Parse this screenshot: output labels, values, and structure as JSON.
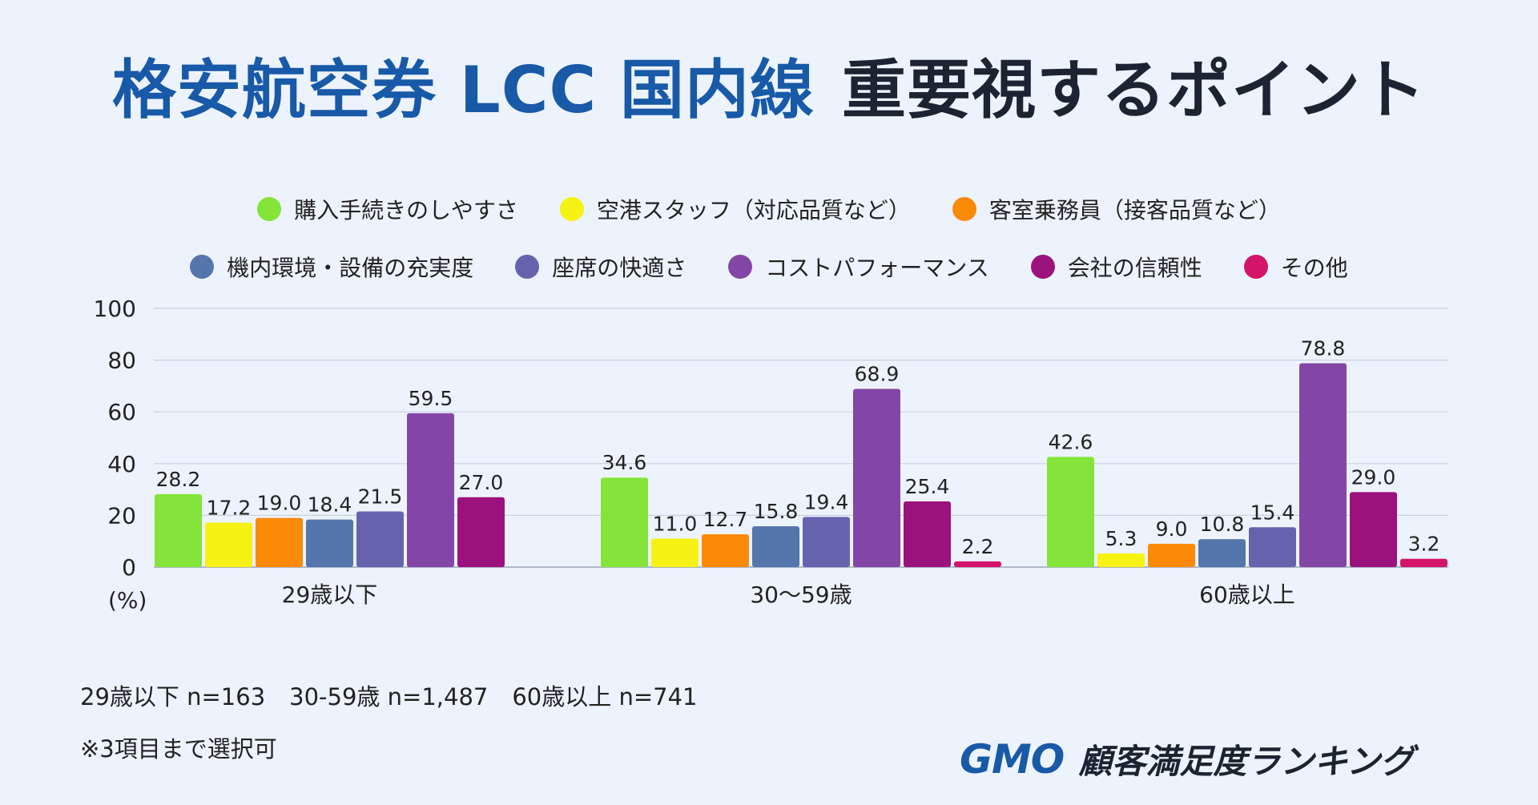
{
  "title": {
    "part1": "格安航空券 LCC 国内線",
    "part2": "重要視するポイント"
  },
  "colors": {
    "title_blue": "#1859a8",
    "title_dark": "#1c2433",
    "background": "#edf3fc"
  },
  "legend": [
    {
      "label": "購入手続きのしやすさ",
      "color": "#84e43a"
    },
    {
      "label": "空港スタッフ（対応品質など）",
      "color": "#f6f213"
    },
    {
      "label": "客室乗務員（接客品質など）",
      "color": "#fb8a09"
    },
    {
      "label": "機内環境・設備の充実度",
      "color": "#5576ad"
    },
    {
      "label": "座席の快適さ",
      "color": "#6663ae"
    },
    {
      "label": "コストパフォーマンス",
      "color": "#8446a6"
    },
    {
      "label": "会社の信頼性",
      "color": "#9b127d"
    },
    {
      "label": "その他",
      "color": "#d4136a"
    }
  ],
  "chart_data": {
    "type": "bar",
    "categories": [
      "29歳以下",
      "30〜59歳",
      "60歳以上"
    ],
    "series": [
      {
        "name": "購入手続きのしやすさ",
        "values": [
          28.2,
          34.6,
          42.6
        ]
      },
      {
        "name": "空港スタッフ（対応品質など）",
        "values": [
          17.2,
          11.0,
          5.3
        ]
      },
      {
        "name": "客室乗務員（接客品質など）",
        "values": [
          19.0,
          12.7,
          9.0
        ]
      },
      {
        "name": "機内環境・設備の充実度",
        "values": [
          18.4,
          15.8,
          10.8
        ]
      },
      {
        "name": "座席の快適さ",
        "values": [
          21.5,
          19.4,
          15.4
        ]
      },
      {
        "name": "コストパフォーマンス",
        "values": [
          59.5,
          68.9,
          78.8
        ]
      },
      {
        "name": "会社の信頼性",
        "values": [
          27.0,
          25.4,
          29.0
        ]
      },
      {
        "name": "その他",
        "values": [
          null,
          2.2,
          3.2
        ]
      }
    ],
    "value_labels": [
      [
        "28.2",
        "34.6",
        "42.6"
      ],
      [
        "17.2",
        "11.0",
        "5.3"
      ],
      [
        "19.0",
        "12.7",
        "9.0"
      ],
      [
        "18.4",
        "15.8",
        "10.8"
      ],
      [
        "21.5",
        "19.4",
        "15.4"
      ],
      [
        "59.5",
        "68.9",
        "78.8"
      ],
      [
        "27.0",
        "25.4",
        "29.0"
      ],
      [
        null,
        "2.2",
        "3.2"
      ]
    ],
    "yticks": [
      "0",
      "20",
      "40",
      "60",
      "80",
      "100"
    ],
    "ylim": [
      0,
      100
    ],
    "yunit": "(%)",
    "grid": true,
    "legend_position": "top"
  },
  "notes": {
    "samples": [
      "29歳以下 n=163",
      "30-59歳 n=1,487",
      "60歳以上 n=741"
    ],
    "selection": "※3項目まで選択可"
  },
  "logo": {
    "gmo": "GMO",
    "ranking": "顧客満足度ランキング"
  }
}
